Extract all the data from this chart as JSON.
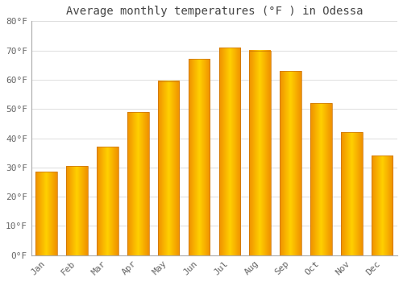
{
  "title": "Average monthly temperatures (°F ) in Odessa",
  "months": [
    "Jan",
    "Feb",
    "Mar",
    "Apr",
    "May",
    "Jun",
    "Jul",
    "Aug",
    "Sep",
    "Oct",
    "Nov",
    "Dec"
  ],
  "values": [
    28.5,
    30.5,
    37.0,
    49.0,
    59.5,
    67.0,
    71.0,
    70.0,
    63.0,
    52.0,
    42.0,
    34.0
  ],
  "bar_color_center": "#FFD000",
  "bar_color_edge": "#F09000",
  "bar_border_color": "#C87000",
  "background_color": "#FFFFFF",
  "plot_bg_color": "#FFFFFF",
  "grid_color": "#DDDDDD",
  "ylim": [
    0,
    80
  ],
  "yticks": [
    0,
    10,
    20,
    30,
    40,
    50,
    60,
    70,
    80
  ],
  "ytick_labels": [
    "0°F",
    "10°F",
    "20°F",
    "30°F",
    "40°F",
    "50°F",
    "60°F",
    "70°F",
    "80°F"
  ],
  "title_fontsize": 10,
  "tick_fontsize": 8,
  "title_color": "#444444",
  "tick_color": "#666666",
  "font_family": "monospace",
  "bar_width": 0.7
}
